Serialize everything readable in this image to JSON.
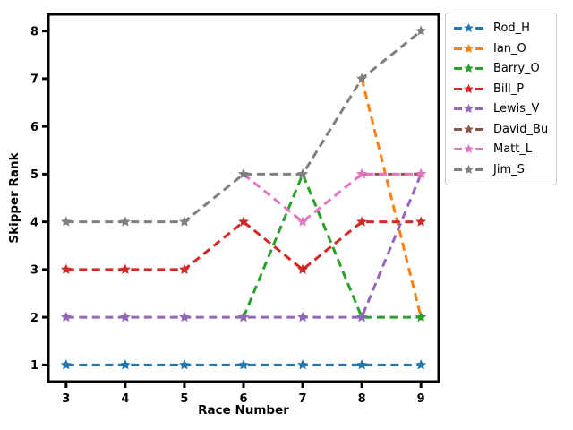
{
  "figure": {
    "background": "#ffffff",
    "axis_color": "#000000"
  },
  "chart_data": {
    "type": "line",
    "title": "",
    "xlabel": "Race Number",
    "ylabel": "Skipper Rank",
    "x": [
      3,
      4,
      5,
      6,
      7,
      8,
      9
    ],
    "xticks": [
      3,
      4,
      5,
      6,
      7,
      8,
      9
    ],
    "yticks": [
      1,
      2,
      3,
      4,
      5,
      6,
      7,
      8
    ],
    "xlim": [
      2.7,
      9.3
    ],
    "ylim": [
      0.65,
      8.35
    ],
    "grid": false,
    "line_style": "dashed",
    "marker": "star",
    "legend_position": "outside-upper-right",
    "series": [
      {
        "name": "Rod_H",
        "color": "#1f77b4",
        "values": [
          1,
          1,
          1,
          1,
          1,
          1,
          1
        ]
      },
      {
        "name": "Ian_O",
        "color": "#ff7f0e",
        "values": [
          null,
          null,
          null,
          null,
          null,
          7,
          2
        ]
      },
      {
        "name": "Barry_O",
        "color": "#2ca02c",
        "values": [
          null,
          null,
          null,
          2,
          5,
          2,
          2
        ]
      },
      {
        "name": "Bill_P",
        "color": "#d62728",
        "values": [
          3,
          3,
          3,
          4,
          3,
          4,
          4
        ]
      },
      {
        "name": "Lewis_V",
        "color": "#9467bd",
        "values": [
          2,
          2,
          2,
          2,
          2,
          2,
          5
        ]
      },
      {
        "name": "David_Bu",
        "color": "#8c564b",
        "values": [
          null,
          null,
          null,
          null,
          null,
          5,
          5
        ]
      },
      {
        "name": "Matt_L",
        "color": "#e377c2",
        "values": [
          null,
          null,
          null,
          5,
          4,
          5,
          5
        ]
      },
      {
        "name": "Jim_S",
        "color": "#7f7f7f",
        "values": [
          4,
          4,
          4,
          5,
          5,
          7,
          8
        ]
      }
    ]
  }
}
